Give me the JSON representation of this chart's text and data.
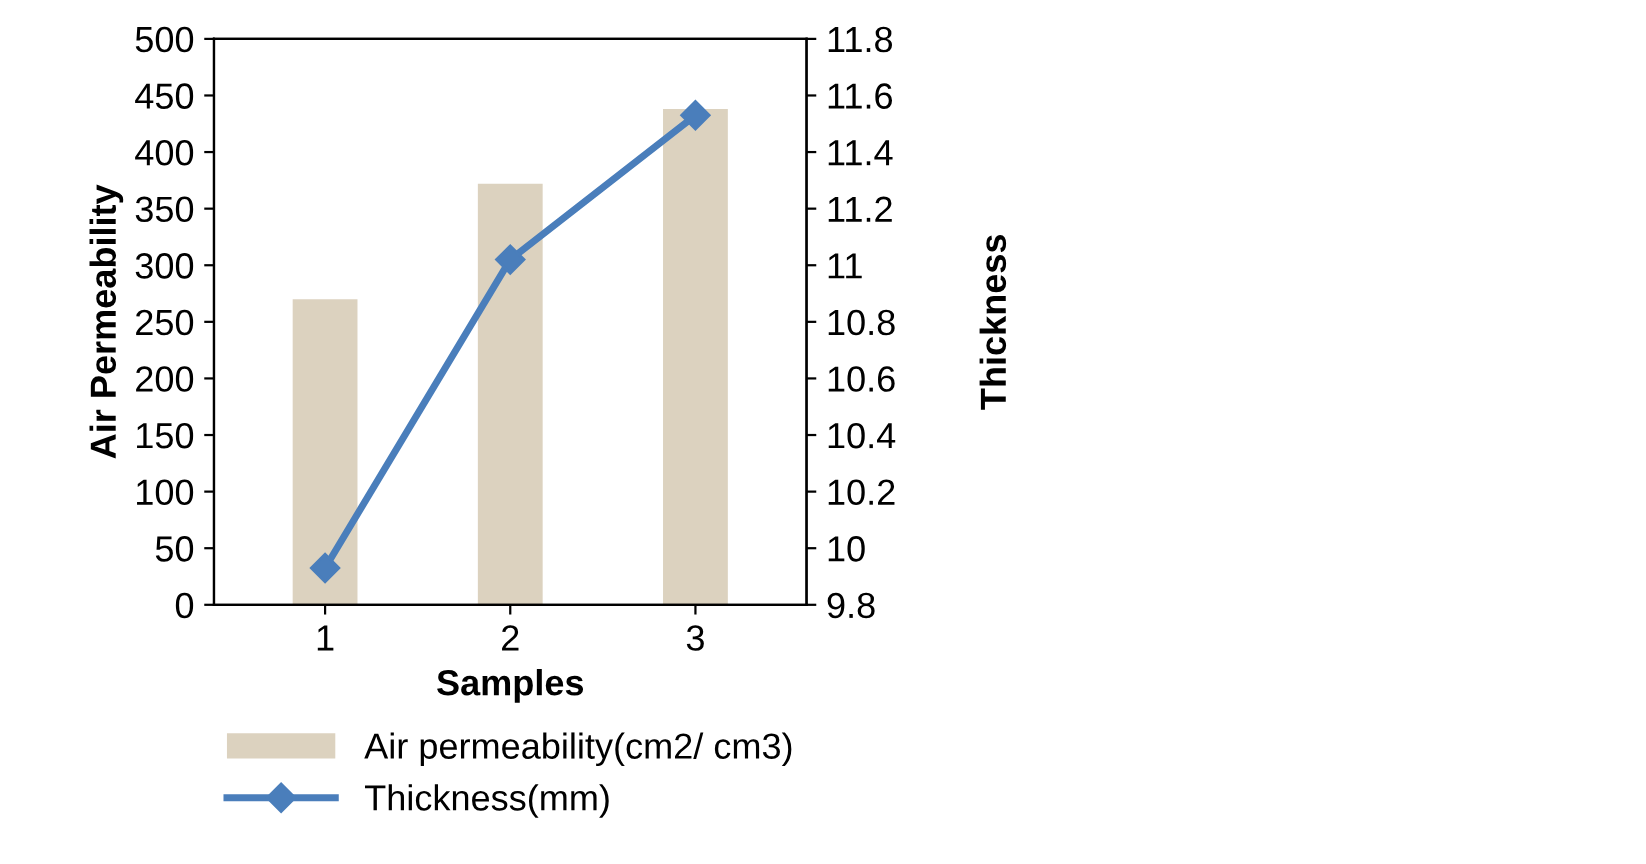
{
  "chart_data": {
    "type": "bar",
    "xlabel": "Samples",
    "ylabel": "Air Permeability",
    "y2label": "Thickness",
    "categories": [
      "1",
      "2",
      "3"
    ],
    "series": [
      {
        "name": "Air permeability(cm2/ cm3)",
        "color": "#dcd2bf",
        "values": [
          270,
          372,
          438
        ]
      },
      {
        "name": "Thickness(mm)",
        "type": "line",
        "axis": "y2",
        "color": "#4a7ebb",
        "marker": "diamond",
        "values": [
          9.93,
          11.02,
          11.53
        ]
      }
    ],
    "ylim": [
      0,
      500
    ],
    "yticks": [
      0,
      50,
      100,
      150,
      200,
      250,
      300,
      350,
      400,
      450,
      500
    ],
    "y2lim": [
      9.8,
      11.8
    ],
    "y2ticks": [
      9.8,
      10,
      10.2,
      10.4,
      10.6,
      10.8,
      11,
      11.2,
      11.4,
      11.6,
      11.8
    ],
    "grid": false,
    "legend": "bottom"
  }
}
